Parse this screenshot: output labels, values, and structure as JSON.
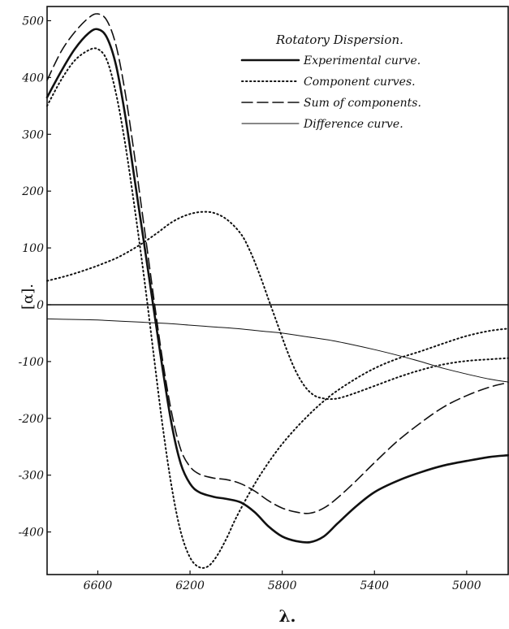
{
  "chart_data": {
    "type": "line",
    "legend_title": "Rotatory Dispersion.",
    "legend_position": "top-right",
    "xlabel": "λ.",
    "ylabel": "[α].",
    "xlim": [
      6820,
      4820
    ],
    "ylim": [
      -475,
      525
    ],
    "x_reversed": true,
    "grid": false,
    "x_ticks": [
      {
        "value": 6600,
        "label": "6600"
      },
      {
        "value": 6200,
        "label": "6200"
      },
      {
        "value": 5800,
        "label": "5800"
      },
      {
        "value": 5400,
        "label": "5400"
      },
      {
        "value": 5000,
        "label": "5000"
      }
    ],
    "y_ticks": [
      {
        "value": 500,
        "label": "500"
      },
      {
        "value": 400,
        "label": "400"
      },
      {
        "value": 300,
        "label": "300"
      },
      {
        "value": 200,
        "label": "200"
      },
      {
        "value": 100,
        "label": "100"
      },
      {
        "value": 0,
        "label": "0"
      },
      {
        "value": -100,
        "label": "-100"
      },
      {
        "value": -200,
        "label": "-200"
      },
      {
        "value": -300,
        "label": "-300"
      },
      {
        "value": -400,
        "label": "-400"
      }
    ],
    "legend": [
      {
        "label": "Experimental curve.",
        "style": "solid-thick"
      },
      {
        "label": "Component curves.",
        "style": "dotted"
      },
      {
        "label": "Sum of components.",
        "style": "dashed"
      },
      {
        "label": "Difference curve.",
        "style": "solid-thin"
      }
    ],
    "series": [
      {
        "style": "solid-thick",
        "points": [
          [
            6820,
            365
          ],
          [
            6760,
            410
          ],
          [
            6700,
            450
          ],
          [
            6640,
            478
          ],
          [
            6600,
            485
          ],
          [
            6560,
            470
          ],
          [
            6520,
            420
          ],
          [
            6480,
            330
          ],
          [
            6440,
            220
          ],
          [
            6400,
            110
          ],
          [
            6360,
            0
          ],
          [
            6320,
            -110
          ],
          [
            6280,
            -210
          ],
          [
            6240,
            -280
          ],
          [
            6200,
            -315
          ],
          [
            6160,
            -330
          ],
          [
            6100,
            -338
          ],
          [
            6040,
            -342
          ],
          [
            5980,
            -348
          ],
          [
            5920,
            -365
          ],
          [
            5860,
            -390
          ],
          [
            5800,
            -408
          ],
          [
            5740,
            -416
          ],
          [
            5680,
            -418
          ],
          [
            5620,
            -408
          ],
          [
            5560,
            -385
          ],
          [
            5480,
            -355
          ],
          [
            5400,
            -330
          ],
          [
            5300,
            -310
          ],
          [
            5200,
            -295
          ],
          [
            5100,
            -283
          ],
          [
            5000,
            -275
          ],
          [
            4900,
            -268
          ],
          [
            4820,
            -265
          ]
        ]
      },
      {
        "style": "dotted",
        "points": [
          [
            6820,
            350
          ],
          [
            6760,
            395
          ],
          [
            6700,
            430
          ],
          [
            6640,
            448
          ],
          [
            6600,
            450
          ],
          [
            6560,
            430
          ],
          [
            6520,
            370
          ],
          [
            6480,
            280
          ],
          [
            6440,
            170
          ],
          [
            6400,
            50
          ],
          [
            6360,
            -80
          ],
          [
            6320,
            -210
          ],
          [
            6280,
            -320
          ],
          [
            6240,
            -400
          ],
          [
            6200,
            -445
          ],
          [
            6160,
            -462
          ],
          [
            6120,
            -460
          ],
          [
            6080,
            -440
          ],
          [
            6040,
            -410
          ],
          [
            6000,
            -375
          ],
          [
            5940,
            -330
          ],
          [
            5880,
            -290
          ],
          [
            5800,
            -245
          ],
          [
            5700,
            -200
          ],
          [
            5600,
            -163
          ],
          [
            5500,
            -135
          ],
          [
            5400,
            -112
          ],
          [
            5300,
            -95
          ],
          [
            5200,
            -82
          ],
          [
            5100,
            -68
          ],
          [
            5000,
            -55
          ],
          [
            4900,
            -46
          ],
          [
            4820,
            -42
          ]
        ]
      },
      {
        "style": "dotted",
        "points": [
          [
            6820,
            42
          ],
          [
            6760,
            48
          ],
          [
            6700,
            55
          ],
          [
            6640,
            63
          ],
          [
            6580,
            72
          ],
          [
            6520,
            82
          ],
          [
            6460,
            95
          ],
          [
            6400,
            110
          ],
          [
            6340,
            127
          ],
          [
            6280,
            145
          ],
          [
            6220,
            157
          ],
          [
            6160,
            163
          ],
          [
            6100,
            162
          ],
          [
            6040,
            150
          ],
          [
            5980,
            125
          ],
          [
            5940,
            95
          ],
          [
            5900,
            55
          ],
          [
            5860,
            10
          ],
          [
            5820,
            -35
          ],
          [
            5780,
            -80
          ],
          [
            5740,
            -118
          ],
          [
            5700,
            -145
          ],
          [
            5660,
            -160
          ],
          [
            5620,
            -165
          ],
          [
            5580,
            -166
          ],
          [
            5540,
            -163
          ],
          [
            5480,
            -155
          ],
          [
            5400,
            -143
          ],
          [
            5300,
            -128
          ],
          [
            5200,
            -115
          ],
          [
            5100,
            -105
          ],
          [
            5000,
            -99
          ],
          [
            4900,
            -96
          ],
          [
            4820,
            -94
          ]
        ]
      },
      {
        "style": "dashed",
        "points": [
          [
            6820,
            395
          ],
          [
            6760,
            445
          ],
          [
            6700,
            480
          ],
          [
            6640,
            505
          ],
          [
            6600,
            512
          ],
          [
            6560,
            500
          ],
          [
            6520,
            455
          ],
          [
            6480,
            370
          ],
          [
            6440,
            260
          ],
          [
            6400,
            140
          ],
          [
            6360,
            20
          ],
          [
            6320,
            -95
          ],
          [
            6280,
            -190
          ],
          [
            6240,
            -255
          ],
          [
            6200,
            -285
          ],
          [
            6160,
            -298
          ],
          [
            6100,
            -305
          ],
          [
            6040,
            -308
          ],
          [
            5980,
            -315
          ],
          [
            5920,
            -328
          ],
          [
            5860,
            -345
          ],
          [
            5800,
            -358
          ],
          [
            5740,
            -365
          ],
          [
            5680,
            -367
          ],
          [
            5620,
            -358
          ],
          [
            5560,
            -340
          ],
          [
            5480,
            -310
          ],
          [
            5400,
            -278
          ],
          [
            5300,
            -240
          ],
          [
            5200,
            -208
          ],
          [
            5100,
            -180
          ],
          [
            5000,
            -160
          ],
          [
            4900,
            -145
          ],
          [
            4820,
            -137
          ]
        ]
      },
      {
        "style": "solid-thin",
        "points": [
          [
            6820,
            -25
          ],
          [
            6700,
            -26
          ],
          [
            6600,
            -27
          ],
          [
            6500,
            -29
          ],
          [
            6400,
            -31
          ],
          [
            6300,
            -33
          ],
          [
            6200,
            -36
          ],
          [
            6100,
            -39
          ],
          [
            6000,
            -42
          ],
          [
            5900,
            -46
          ],
          [
            5800,
            -50
          ],
          [
            5700,
            -56
          ],
          [
            5600,
            -62
          ],
          [
            5500,
            -70
          ],
          [
            5400,
            -79
          ],
          [
            5300,
            -89
          ],
          [
            5200,
            -100
          ],
          [
            5100,
            -112
          ],
          [
            5000,
            -122
          ],
          [
            4900,
            -131
          ],
          [
            4820,
            -136
          ]
        ]
      },
      {
        "style": "solid-zero",
        "points": [
          [
            6820,
            0
          ],
          [
            4820,
            0
          ]
        ]
      }
    ]
  }
}
